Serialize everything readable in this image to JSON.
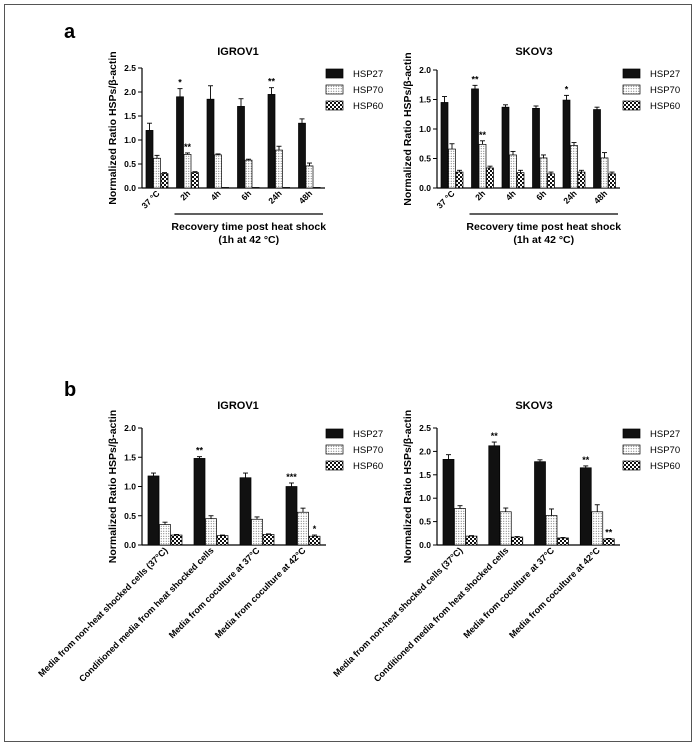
{
  "panels": [
    {
      "label": "a"
    },
    {
      "label": "b"
    }
  ],
  "chart_data": [
    {
      "type": "bar",
      "panel": "a",
      "title": "IGROV1",
      "ylabel": "Normalized Ratio HSPs/β-actin",
      "xlabel": "Recovery time post heat shock\n(1h at 42 °C)",
      "ylim": [
        0,
        2.5
      ],
      "yticks": [
        "0.0",
        "0.5",
        "1.0",
        "1.5",
        "2.0",
        "2.5"
      ],
      "categories": [
        "37 °C",
        "2h",
        "4h",
        "6h",
        "24h",
        "48h"
      ],
      "bracket_from_category": 1,
      "legend": "right",
      "series": [
        {
          "name": "HSP27",
          "pattern": "solid",
          "values": [
            1.2,
            1.9,
            1.85,
            1.7,
            1.95,
            1.35
          ],
          "errors": [
            0.15,
            0.17,
            0.28,
            0.16,
            0.14,
            0.09
          ],
          "sig": [
            "",
            "*",
            "",
            "",
            "**",
            ""
          ]
        },
        {
          "name": "HSP70",
          "pattern": "dots",
          "values": [
            0.62,
            0.7,
            0.69,
            0.58,
            0.79,
            0.46
          ],
          "errors": [
            0.06,
            0.03,
            0.02,
            0.02,
            0.08,
            0.06
          ],
          "sig": [
            "",
            "**",
            "",
            "",
            "",
            ""
          ]
        },
        {
          "name": "HSP60",
          "pattern": "check",
          "values": [
            0.3,
            0.32,
            0.0,
            0.0,
            0.0,
            0.0
          ],
          "errors": [
            0.02,
            0.02,
            0,
            0,
            0,
            0
          ],
          "sig": [
            "",
            "",
            "",
            "",
            "",
            ""
          ]
        }
      ]
    },
    {
      "type": "bar",
      "panel": "a",
      "title": "SKOV3",
      "ylabel": "Normalized Ratio HSPs/β-actin",
      "xlabel": "Recovery time post heat shock\n(1h at 42 °C)",
      "ylim": [
        0,
        2.0
      ],
      "yticks": [
        "0.0",
        "0.5",
        "1.0",
        "1.5",
        "2.0"
      ],
      "categories": [
        "37 °C",
        "2h",
        "4h",
        "6h",
        "24h",
        "48h"
      ],
      "bracket_from_category": 1,
      "legend": "right",
      "series": [
        {
          "name": "HSP27",
          "pattern": "solid",
          "values": [
            1.45,
            1.68,
            1.37,
            1.35,
            1.49,
            1.33
          ],
          "errors": [
            0.1,
            0.06,
            0.04,
            0.04,
            0.08,
            0.04
          ],
          "sig": [
            "",
            "**",
            "",
            "",
            "*",
            ""
          ]
        },
        {
          "name": "HSP70",
          "pattern": "dots",
          "values": [
            0.66,
            0.74,
            0.56,
            0.51,
            0.72,
            0.51
          ],
          "errors": [
            0.09,
            0.06,
            0.06,
            0.05,
            0.05,
            0.09
          ],
          "sig": [
            "",
            "**",
            "",
            "",
            "",
            ""
          ]
        },
        {
          "name": "HSP60",
          "pattern": "check",
          "values": [
            0.27,
            0.34,
            0.26,
            0.24,
            0.27,
            0.24
          ],
          "errors": [
            0.03,
            0.03,
            0.04,
            0.03,
            0.03,
            0.03
          ],
          "sig": [
            "",
            "",
            "",
            "",
            "",
            ""
          ]
        }
      ]
    },
    {
      "type": "bar",
      "panel": "b",
      "title": "IGROV1",
      "ylabel": "Normalized Ratio HSPs/β-actin",
      "xlabel": "",
      "ylim": [
        0,
        2.0
      ],
      "yticks": [
        "0.0",
        "0.5",
        "1.0",
        "1.5",
        "2.0"
      ],
      "categories": [
        "Media from non-heat shocked cells (37°C)",
        "Conditioned media from heat shocked cells",
        "Media from coculture at 37°C",
        "Media from coculture at 42°C"
      ],
      "legend": "right",
      "series": [
        {
          "name": "HSP27",
          "pattern": "solid",
          "values": [
            1.18,
            1.48,
            1.15,
            1.0
          ],
          "errors": [
            0.05,
            0.03,
            0.08,
            0.06
          ],
          "sig": [
            "",
            "**",
            "",
            "***"
          ]
        },
        {
          "name": "HSP70",
          "pattern": "dots",
          "values": [
            0.35,
            0.45,
            0.44,
            0.56
          ],
          "errors": [
            0.04,
            0.05,
            0.04,
            0.07
          ],
          "sig": [
            "",
            "",
            "",
            ""
          ]
        },
        {
          "name": "HSP60",
          "pattern": "check",
          "values": [
            0.17,
            0.16,
            0.18,
            0.15
          ],
          "errors": [
            0.01,
            0.01,
            0.01,
            0.02
          ],
          "sig": [
            "",
            "",
            "",
            "*"
          ]
        }
      ]
    },
    {
      "type": "bar",
      "panel": "b",
      "title": "SKOV3",
      "ylabel": "Normalized Ratio HSPs/β-actin",
      "xlabel": "",
      "ylim": [
        0,
        2.5
      ],
      "yticks": [
        "0.0",
        "0.5",
        "1.0",
        "1.5",
        "2.0",
        "2.5"
      ],
      "categories": [
        "Media from non-heat shocked cells (37°C)",
        "Conditioned media from heat shocked cells",
        "Media from coculture at 37°C",
        "Media from coculture at 42°C"
      ],
      "legend": "right",
      "series": [
        {
          "name": "HSP27",
          "pattern": "solid",
          "values": [
            1.83,
            2.12,
            1.78,
            1.65
          ],
          "errors": [
            0.1,
            0.08,
            0.04,
            0.04
          ],
          "sig": [
            "",
            "**",
            "",
            "**"
          ]
        },
        {
          "name": "HSP70",
          "pattern": "dots",
          "values": [
            0.78,
            0.71,
            0.63,
            0.71
          ],
          "errors": [
            0.06,
            0.08,
            0.14,
            0.15
          ],
          "sig": [
            "",
            "",
            "",
            ""
          ]
        },
        {
          "name": "HSP60",
          "pattern": "check",
          "values": [
            0.19,
            0.17,
            0.15,
            0.13
          ],
          "errors": [
            0.01,
            0.01,
            0.01,
            0.01
          ],
          "sig": [
            "",
            "",
            "",
            "**"
          ]
        }
      ]
    }
  ]
}
